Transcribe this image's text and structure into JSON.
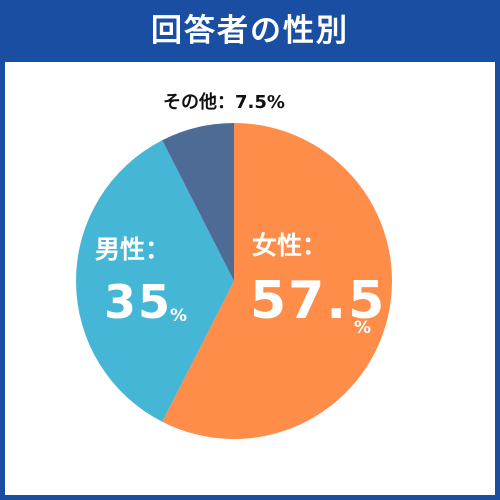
{
  "title": "回答者の性別",
  "colors": {
    "header": "#1a4ea3",
    "border": "#1a4ea3",
    "female": "#fd8d49",
    "male": "#45b6d6",
    "other": "#4e6b95",
    "label_light": "#ffffff",
    "label_dark": "#111111"
  },
  "chart_data": {
    "type": "pie",
    "slices": [
      {
        "label": "女性：",
        "value": 57.5,
        "value_text": "57.5",
        "unit": "%"
      },
      {
        "label": "男性：",
        "value": 35,
        "value_text": "35",
        "unit": "%"
      },
      {
        "label": "その他：7.5%",
        "value": 7.5
      }
    ]
  }
}
